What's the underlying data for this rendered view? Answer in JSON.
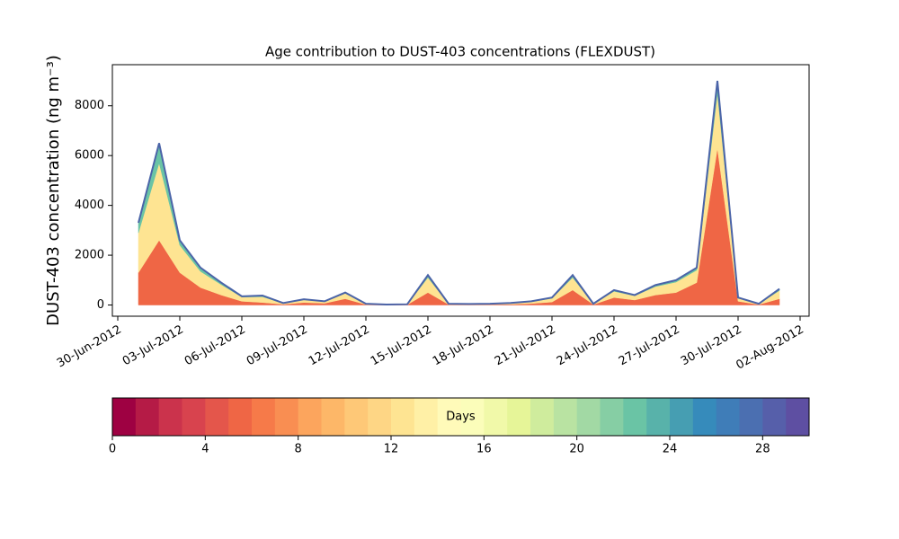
{
  "chart_data": {
    "type": "stacked_area",
    "title": "Age contribution to DUST-403 concentrations (FLEXDUST)",
    "y_label": "DUST-403 concentration (ng m⁻³)",
    "x": [
      "01-Jul-2012",
      "02-Jul-2012",
      "03-Jul-2012",
      "04-Jul-2012",
      "05-Jul-2012",
      "06-Jul-2012",
      "07-Jul-2012",
      "08-Jul-2012",
      "09-Jul-2012",
      "10-Jul-2012",
      "11-Jul-2012",
      "12-Jul-2012",
      "13-Jul-2012",
      "14-Jul-2012",
      "15-Jul-2012",
      "16-Jul-2012",
      "17-Jul-2012",
      "18-Jul-2012",
      "19-Jul-2012",
      "20-Jul-2012",
      "21-Jul-2012",
      "22-Jul-2012",
      "23-Jul-2012",
      "24-Jul-2012",
      "25-Jul-2012",
      "26-Jul-2012",
      "27-Jul-2012",
      "28-Jul-2012",
      "29-Jul-2012",
      "30-Jul-2012",
      "31-Jul-2012",
      "01-Aug-2012"
    ],
    "series": [
      {
        "color": "#ef6645",
        "values": [
          1300,
          2600,
          1300,
          700,
          400,
          150,
          100,
          30,
          100,
          70,
          250,
          20,
          10,
          12,
          500,
          20,
          15,
          20,
          30,
          60,
          120,
          600,
          20,
          300,
          200,
          400,
          500,
          900,
          6300,
          150,
          20,
          250
        ]
      },
      {
        "color": "#fee492",
        "values": [
          1600,
          3100,
          1100,
          650,
          420,
          170,
          230,
          40,
          110,
          70,
          220,
          25,
          8,
          15,
          600,
          25,
          20,
          25,
          40,
          75,
          150,
          500,
          25,
          250,
          170,
          340,
          420,
          500,
          2200,
          130,
          25,
          330
        ]
      },
      {
        "color": "#6ac4a5",
        "values": [
          400,
          800,
          200,
          150,
          80,
          30,
          50,
          10,
          20,
          10,
          30,
          5,
          2,
          3,
          100,
          5,
          5,
          5,
          10,
          15,
          30,
          100,
          5,
          50,
          30,
          60,
          80,
          100,
          500,
          20,
          5,
          70
        ]
      }
    ],
    "line_color": "#4b64a8",
    "xlim": [
      "30-Jun-2012",
      "02-Aug-2012"
    ],
    "xticks": [
      "30-Jun-2012",
      "03-Jul-2012",
      "06-Jul-2012",
      "09-Jul-2012",
      "12-Jul-2012",
      "15-Jul-2012",
      "18-Jul-2012",
      "21-Jul-2012",
      "24-Jul-2012",
      "27-Jul-2012",
      "30-Jul-2012",
      "02-Aug-2012"
    ],
    "ylim": [
      -450,
      9650
    ],
    "yticks": [
      0,
      2000,
      4000,
      6000,
      8000
    ],
    "colorbar": {
      "label": "Days",
      "lim": [
        0,
        30
      ],
      "ticks": [
        0,
        4,
        8,
        12,
        16,
        20,
        24,
        28
      ],
      "colors": [
        "#9e0142",
        "#b51b46",
        "#cb334c",
        "#d8434e",
        "#e4564b",
        "#ef6645",
        "#f67a49",
        "#f98e52",
        "#fca55d",
        "#fdb768",
        "#fec877",
        "#fed685",
        "#fee492",
        "#fff0a6",
        "#fffab9",
        "#fbfdba",
        "#f1f9a9",
        "#e6f598",
        "#cfec9d",
        "#b9e3a2",
        "#a2d9a4",
        "#86cea4",
        "#6ac4a5",
        "#58b2aa",
        "#469eb2",
        "#368bbb",
        "#3f7db8",
        "#4b6fb1",
        "#565faa",
        "#5e4fa2"
      ]
    }
  }
}
